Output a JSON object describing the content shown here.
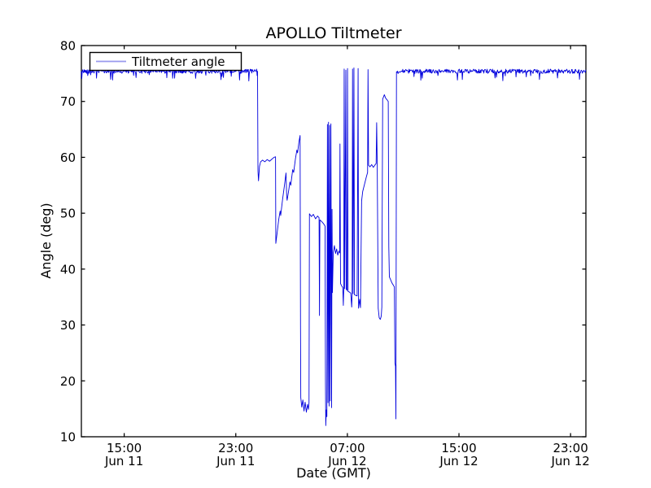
{
  "chart_data": {
    "type": "line",
    "title": "APOLLO Tiltmeter",
    "xlabel": "Date (GMT)",
    "ylabel": "Angle (deg)",
    "legend_label": "Tiltmeter angle",
    "legend_position": "upper left",
    "grid": false,
    "x_unit": "hours since Jun 11 00:00 GMT",
    "xlim": [
      11.93,
      48.1
    ],
    "ylim": [
      10,
      80
    ],
    "y_ticks": [
      "10",
      "20",
      "30",
      "40",
      "50",
      "60",
      "70",
      "80"
    ],
    "y_tick_values": [
      10,
      20,
      30,
      40,
      50,
      60,
      70,
      80
    ],
    "x_ticks": [
      {
        "t": 15,
        "time": "15:00",
        "date": "Jun 11"
      },
      {
        "t": 23,
        "time": "23:00",
        "date": "Jun 11"
      },
      {
        "t": 31,
        "time": "07:00",
        "date": "Jun 12"
      },
      {
        "t": 39,
        "time": "15:00",
        "date": "Jun 12"
      },
      {
        "t": 47,
        "time": "23:00",
        "date": "Jun 12"
      }
    ],
    "colors": {
      "line": "#0000dd",
      "legend_line": "#9999ee",
      "axis": "#000000",
      "background": "#ffffff"
    },
    "series": [
      {
        "name": "Tiltmeter angle",
        "segments": [
          {
            "type": "points",
            "pts": [
              [
                11.93,
                75.4
              ],
              [
                11.96,
                74.1
              ],
              [
                11.99,
                75.4
              ]
            ]
          },
          {
            "type": "noisy",
            "t0": 12.0,
            "t1": 24.53,
            "step": 0.035,
            "level": 75.4,
            "amp": 0.38,
            "dip_p": 0.05,
            "dip": 1.1,
            "seed": 42
          },
          {
            "type": "points",
            "pts": [
              [
                24.56,
                75.4
              ],
              [
                24.59,
                57.6
              ],
              [
                24.63,
                55.8
              ],
              [
                24.7,
                58.4
              ],
              [
                24.78,
                59.2
              ],
              [
                24.92,
                59.5
              ],
              [
                25.08,
                59.2
              ],
              [
                25.25,
                59.6
              ],
              [
                25.42,
                59.3
              ],
              [
                25.6,
                59.7
              ],
              [
                25.74,
                60.0
              ],
              [
                25.85,
                60.1
              ],
              [
                25.87,
                44.6
              ],
              [
                25.98,
                46.8
              ],
              [
                26.08,
                48.9
              ],
              [
                26.18,
                50.4
              ],
              [
                26.22,
                49.6
              ],
              [
                26.35,
                52.4
              ],
              [
                26.5,
                55.2
              ],
              [
                26.6,
                57.2
              ],
              [
                26.65,
                53.0
              ],
              [
                26.68,
                52.3
              ],
              [
                26.8,
                54.2
              ],
              [
                26.88,
                55.6
              ],
              [
                26.94,
                55.0
              ],
              [
                27.08,
                57.8
              ],
              [
                27.15,
                57.3
              ],
              [
                27.28,
                59.8
              ],
              [
                27.38,
                61.3
              ],
              [
                27.43,
                60.8
              ],
              [
                27.53,
                62.8
              ],
              [
                27.61,
                63.9
              ],
              [
                27.64,
                30.0
              ],
              [
                27.66,
                17.0
              ],
              [
                27.73,
                15.3
              ],
              [
                27.81,
                16.6
              ],
              [
                27.89,
                14.6
              ],
              [
                27.97,
                16.2
              ],
              [
                28.06,
                14.4
              ],
              [
                28.14,
                15.8
              ],
              [
                28.21,
                14.9
              ],
              [
                28.25,
                16.1
              ],
              [
                28.28,
                49.9
              ],
              [
                28.42,
                49.4
              ],
              [
                28.56,
                49.8
              ],
              [
                28.72,
                49.0
              ],
              [
                28.86,
                49.5
              ],
              [
                28.97,
                49.2
              ],
              [
                29.0,
                31.7
              ],
              [
                29.03,
                48.8
              ],
              [
                29.16,
                48.5
              ],
              [
                29.3,
                48.1
              ],
              [
                29.4,
                47.7
              ],
              [
                29.43,
                20.0
              ],
              [
                29.45,
                12.0
              ],
              [
                29.49,
                14.8
              ],
              [
                29.53,
                13.6
              ],
              [
                29.57,
                65.9
              ],
              [
                29.61,
                16.1
              ],
              [
                29.65,
                66.3
              ],
              [
                29.69,
                15.5
              ],
              [
                29.73,
                65.7
              ],
              [
                29.77,
                16.4
              ],
              [
                29.82,
                66.0
              ],
              [
                29.87,
                15.2
              ],
              [
                29.9,
                50.7
              ],
              [
                29.93,
                35.8
              ],
              [
                29.99,
                43.0
              ],
              [
                30.07,
                44.2
              ],
              [
                30.15,
                42.8
              ],
              [
                30.23,
                43.6
              ],
              [
                30.31,
                42.5
              ],
              [
                30.39,
                43.2
              ],
              [
                30.44,
                42.9
              ],
              [
                30.47,
                62.4
              ],
              [
                30.51,
                37.4
              ],
              [
                30.59,
                37.0
              ],
              [
                30.67,
                36.7
              ],
              [
                30.71,
                33.5
              ],
              [
                30.74,
                36.6
              ],
              [
                30.77,
                75.8
              ],
              [
                30.81,
                36.5
              ],
              [
                30.89,
                75.6
              ],
              [
                30.92,
                36.4
              ],
              [
                30.98,
                36.2
              ],
              [
                31.01,
                75.9
              ],
              [
                31.05,
                36.0
              ],
              [
                31.14,
                35.9
              ],
              [
                31.24,
                35.7
              ],
              [
                31.31,
                33.2
              ],
              [
                31.34,
                35.6
              ],
              [
                31.37,
                75.8
              ],
              [
                31.41,
                35.6
              ],
              [
                31.47,
                76.0
              ],
              [
                31.51,
                35.4
              ],
              [
                31.6,
                35.3
              ],
              [
                31.7,
                35.2
              ],
              [
                31.77,
                75.9
              ],
              [
                31.8,
                33.0
              ],
              [
                31.88,
                34.6
              ],
              [
                31.94,
                33.1
              ],
              [
                32.02,
                52.2
              ],
              [
                32.1,
                53.9
              ],
              [
                32.22,
                55.1
              ],
              [
                32.36,
                56.5
              ],
              [
                32.45,
                57.3
              ],
              [
                32.48,
                75.7
              ],
              [
                32.52,
                58.6
              ],
              [
                32.62,
                58.3
              ],
              [
                32.74,
                58.7
              ],
              [
                32.86,
                58.2
              ],
              [
                32.97,
                58.6
              ],
              [
                33.06,
                58.9
              ],
              [
                33.1,
                66.2
              ],
              [
                33.14,
                58.8
              ],
              [
                33.21,
                33.0
              ],
              [
                33.28,
                31.3
              ],
              [
                33.36,
                31.0
              ],
              [
                33.43,
                31.6
              ],
              [
                33.47,
                33.2
              ],
              [
                33.53,
                70.4
              ],
              [
                33.59,
                70.8
              ],
              [
                33.65,
                71.2
              ],
              [
                33.74,
                70.6
              ],
              [
                33.84,
                70.3
              ],
              [
                33.93,
                70.0
              ],
              [
                33.97,
                44.0
              ],
              [
                34.01,
                38.6
              ],
              [
                34.1,
                38.1
              ],
              [
                34.2,
                37.5
              ],
              [
                34.3,
                37.1
              ],
              [
                34.37,
                36.8
              ],
              [
                34.41,
                23.2
              ],
              [
                34.45,
                22.6
              ],
              [
                34.48,
                13.2
              ],
              [
                34.52,
                75.3
              ]
            ]
          },
          {
            "type": "noisy",
            "t0": 34.55,
            "t1": 48.1,
            "step": 0.035,
            "level": 75.4,
            "amp": 0.38,
            "dip_p": 0.05,
            "dip": 1.1,
            "seed": 99
          }
        ]
      }
    ]
  }
}
